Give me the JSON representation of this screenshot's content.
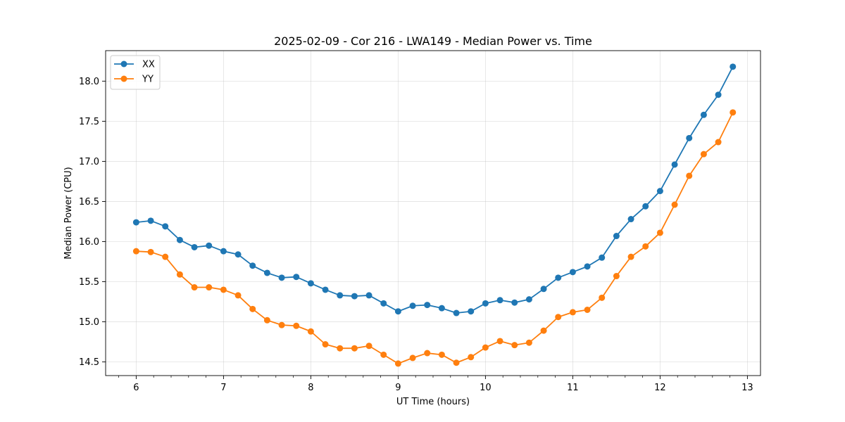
{
  "chart_data": {
    "type": "line",
    "title": "2025-02-09 - Cor 216 - LWA149 - Median Power vs. Time",
    "xlabel": "UT Time (hours)",
    "ylabel": "Median Power (CPU)",
    "xlim": [
      5.65,
      13.15
    ],
    "ylim": [
      14.33,
      18.38
    ],
    "xticks": [
      6,
      7,
      8,
      9,
      10,
      11,
      12,
      13
    ],
    "xtick_labels": [
      "6",
      "7",
      "8",
      "9",
      "10",
      "11",
      "12",
      "13"
    ],
    "yticks": [
      14.5,
      15.0,
      15.5,
      16.0,
      16.5,
      17.0,
      17.5,
      18.0
    ],
    "ytick_labels": [
      "14.5",
      "15.0",
      "15.5",
      "16.0",
      "16.5",
      "17.0",
      "17.5",
      "18.0"
    ],
    "grid": true,
    "legend_position": "top-left",
    "x": [
      6.0,
      6.1667,
      6.3333,
      6.5,
      6.6667,
      6.8333,
      7.0,
      7.1667,
      7.3333,
      7.5,
      7.6667,
      7.8333,
      8.0,
      8.1667,
      8.3333,
      8.5,
      8.6667,
      8.8333,
      9.0,
      9.1667,
      9.3333,
      9.5,
      9.6667,
      9.8333,
      10.0,
      10.1667,
      10.3333,
      10.5,
      10.6667,
      10.8333,
      11.0,
      11.1667,
      11.3333,
      11.5,
      11.6667,
      11.8333,
      12.0,
      12.1667,
      12.3333,
      12.5,
      12.6667,
      12.8333
    ],
    "series": [
      {
        "name": "XX",
        "color": "#1f77b4",
        "values": [
          16.24,
          16.26,
          16.19,
          16.02,
          15.93,
          15.95,
          15.88,
          15.84,
          15.7,
          15.61,
          15.55,
          15.56,
          15.48,
          15.4,
          15.33,
          15.32,
          15.33,
          15.23,
          15.13,
          15.2,
          15.21,
          15.17,
          15.11,
          15.13,
          15.23,
          15.27,
          15.24,
          15.28,
          15.41,
          15.55,
          15.62,
          15.69,
          15.8,
          16.07,
          16.28,
          16.44,
          16.63,
          16.96,
          17.29,
          17.58,
          17.83,
          18.18
        ]
      },
      {
        "name": "YY",
        "color": "#ff7f0e",
        "values": [
          15.88,
          15.87,
          15.81,
          15.59,
          15.43,
          15.43,
          15.4,
          15.33,
          15.16,
          15.02,
          14.96,
          14.95,
          14.88,
          14.72,
          14.67,
          14.67,
          14.7,
          14.59,
          14.48,
          14.55,
          14.61,
          14.59,
          14.49,
          14.56,
          14.68,
          14.76,
          14.71,
          14.74,
          14.89,
          15.06,
          15.12,
          15.15,
          15.3,
          15.57,
          15.81,
          15.94,
          16.11,
          16.46,
          16.82,
          17.09,
          17.24,
          17.61
        ]
      }
    ]
  }
}
